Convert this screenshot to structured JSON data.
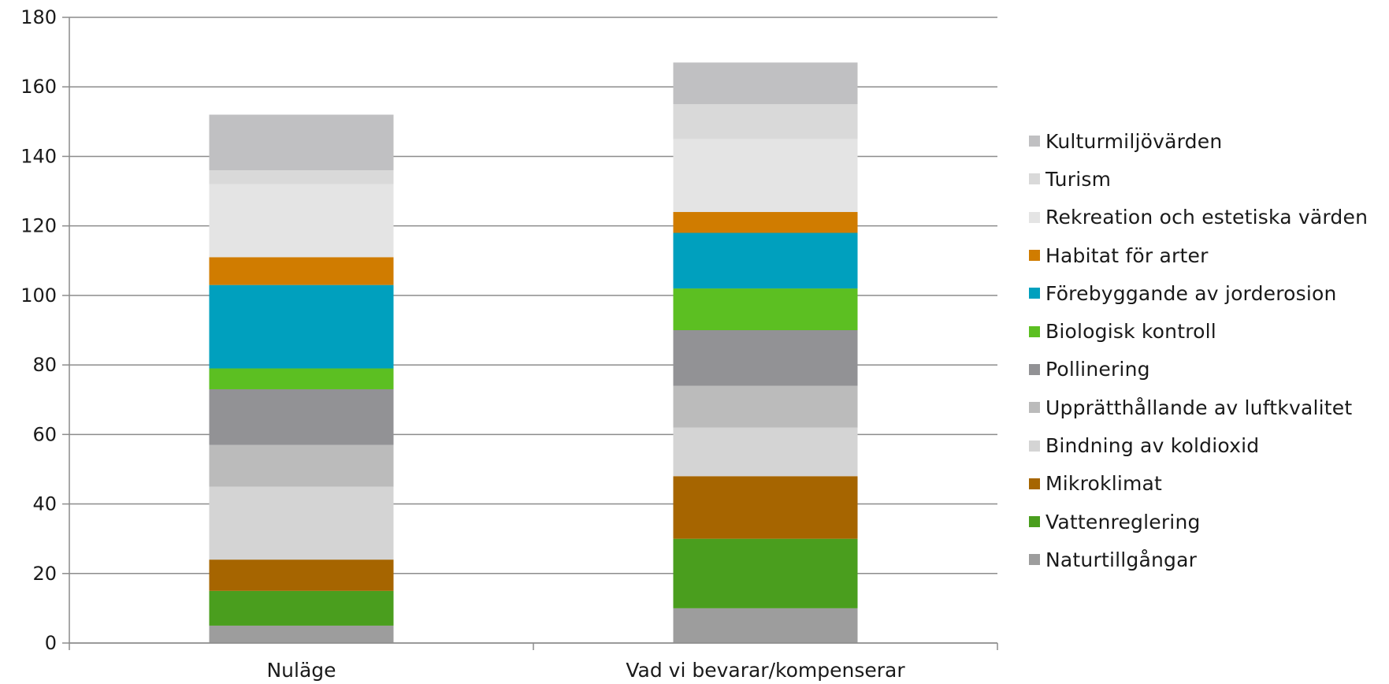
{
  "chart_data": {
    "type": "bar",
    "stacked": true,
    "categories": [
      "Nuläge",
      "Vad vi bevarar/kompenserar"
    ],
    "series": [
      {
        "name": "Naturtillgångar",
        "color": "#9d9d9d",
        "values": [
          5,
          10
        ]
      },
      {
        "name": "Vattenreglering",
        "color": "#4a9e1e",
        "values": [
          10,
          20
        ]
      },
      {
        "name": "Mikroklimat",
        "color": "#a66500",
        "values": [
          9,
          18
        ]
      },
      {
        "name": "Bindning av koldioxid",
        "color": "#d4d4d4",
        "values": [
          21,
          14
        ]
      },
      {
        "name": "Upprätthållande av luftkvalitet",
        "color": "#bbbbbb",
        "values": [
          12,
          12
        ]
      },
      {
        "name": "Pollinering",
        "color": "#929295",
        "values": [
          16,
          16
        ]
      },
      {
        "name": "Biologisk kontroll",
        "color": "#5cbf22",
        "values": [
          6,
          12
        ]
      },
      {
        "name": "Förebyggande av jorderosion",
        "color": "#00a0be",
        "values": [
          24,
          16
        ]
      },
      {
        "name": "Habitat för arter",
        "color": "#d07c00",
        "values": [
          8,
          6
        ]
      },
      {
        "name": "Rekreation och estetiska värden",
        "color": "#e4e4e4",
        "values": [
          21,
          21
        ]
      },
      {
        "name": "Turism",
        "color": "#d9d9d9",
        "values": [
          4,
          10
        ]
      },
      {
        "name": "Kulturmiljövärden",
        "color": "#c0c0c2",
        "values": [
          16,
          12
        ]
      }
    ],
    "ylim": [
      0,
      180
    ],
    "yticks": [
      0,
      20,
      40,
      60,
      80,
      100,
      120,
      140,
      160,
      180
    ],
    "grid": true,
    "legend": "right",
    "legend_order": "reverse",
    "title": "",
    "xlabel": "",
    "ylabel": ""
  }
}
